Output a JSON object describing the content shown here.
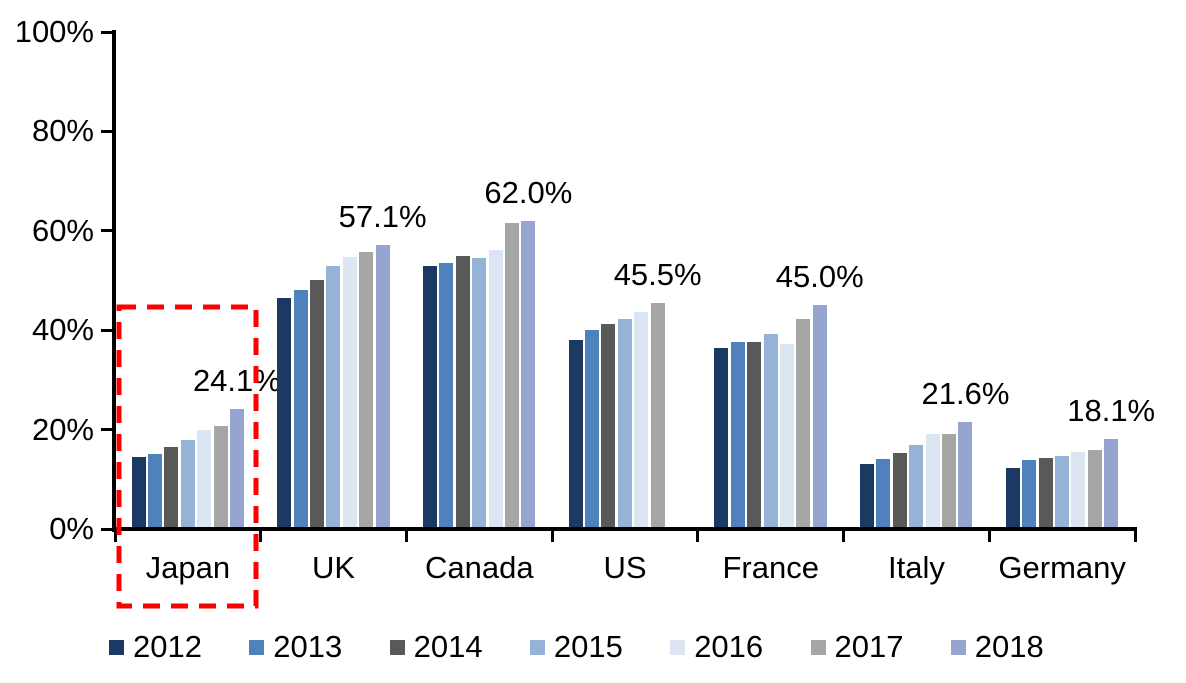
{
  "chart_data": {
    "type": "bar",
    "title": "",
    "categories": [
      "Japan",
      "UK",
      "Canada",
      "US",
      "France",
      "Italy",
      "Germany"
    ],
    "series": [
      {
        "name": "2012",
        "color": "#1B3A63",
        "values": [
          14.5,
          46.5,
          53.0,
          38.0,
          36.5,
          13.0,
          12.3
        ]
      },
      {
        "name": "2013",
        "color": "#4F81BD",
        "values": [
          15.0,
          48.0,
          53.5,
          40.0,
          37.6,
          14.0,
          13.8
        ]
      },
      {
        "name": "2014",
        "color": "#595959",
        "values": [
          16.4,
          50.0,
          55.0,
          41.2,
          37.6,
          15.3,
          14.3
        ]
      },
      {
        "name": "2015",
        "color": "#95B3D7",
        "values": [
          17.9,
          53.0,
          54.6,
          42.2,
          39.3,
          16.9,
          14.7
        ]
      },
      {
        "name": "2016",
        "color": "#DCE6F2",
        "values": [
          19.9,
          54.8,
          56.2,
          43.6,
          37.3,
          19.1,
          15.4
        ]
      },
      {
        "name": "2017",
        "color": "#A6A6A6",
        "values": [
          20.8,
          55.7,
          61.5,
          45.5,
          42.2,
          19.2,
          15.9
        ]
      },
      {
        "name": "2018",
        "color": "#95A5CF",
        "values": [
          24.1,
          57.1,
          62.0,
          null,
          45.0,
          21.6,
          18.1
        ]
      }
    ],
    "value_labels": [
      "24.1%",
      "57.1%",
      "62.0%",
      "45.5%",
      "45.0%",
      "21.6%",
      "18.1%"
    ],
    "axis": {
      "ylim": [
        0,
        100
      ],
      "ytick_labels": [
        "0%",
        "20%",
        "40%",
        "60%",
        "80%",
        "100%"
      ],
      "grid": false
    },
    "legend_position": "bottom",
    "highlight": {
      "target": "Japan",
      "style": "dashed-box",
      "color": "#FF0000"
    }
  }
}
